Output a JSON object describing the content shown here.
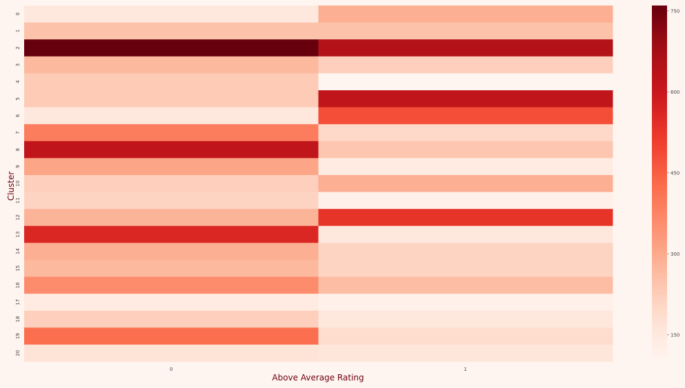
{
  "chart_data": {
    "type": "heatmap",
    "xlabel": "Above Average Rating",
    "ylabel": "Cluster",
    "x_categories": [
      "0",
      "1"
    ],
    "y_categories": [
      "0",
      "1",
      "2",
      "3",
      "4",
      "5",
      "6",
      "7",
      "8",
      "9",
      "10",
      "11",
      "12",
      "13",
      "14",
      "15",
      "16",
      "17",
      "18",
      "19",
      "20"
    ],
    "values": [
      [
        150,
        290
      ],
      [
        250,
        250
      ],
      [
        760,
        650
      ],
      [
        270,
        220
      ],
      [
        230,
        100
      ],
      [
        230,
        620
      ],
      [
        150,
        480
      ],
      [
        390,
        200
      ],
      [
        620,
        240
      ],
      [
        310,
        140
      ],
      [
        220,
        290
      ],
      [
        210,
        120
      ],
      [
        280,
        530
      ],
      [
        560,
        150
      ],
      [
        290,
        210
      ],
      [
        270,
        210
      ],
      [
        360,
        260
      ],
      [
        140,
        120
      ],
      [
        220,
        150
      ],
      [
        420,
        190
      ],
      [
        170,
        160
      ]
    ],
    "colorbar": {
      "vmin": 100,
      "vmax": 760,
      "ticks": [
        150,
        300,
        450,
        600,
        750
      ],
      "colormap": "Reds"
    }
  }
}
